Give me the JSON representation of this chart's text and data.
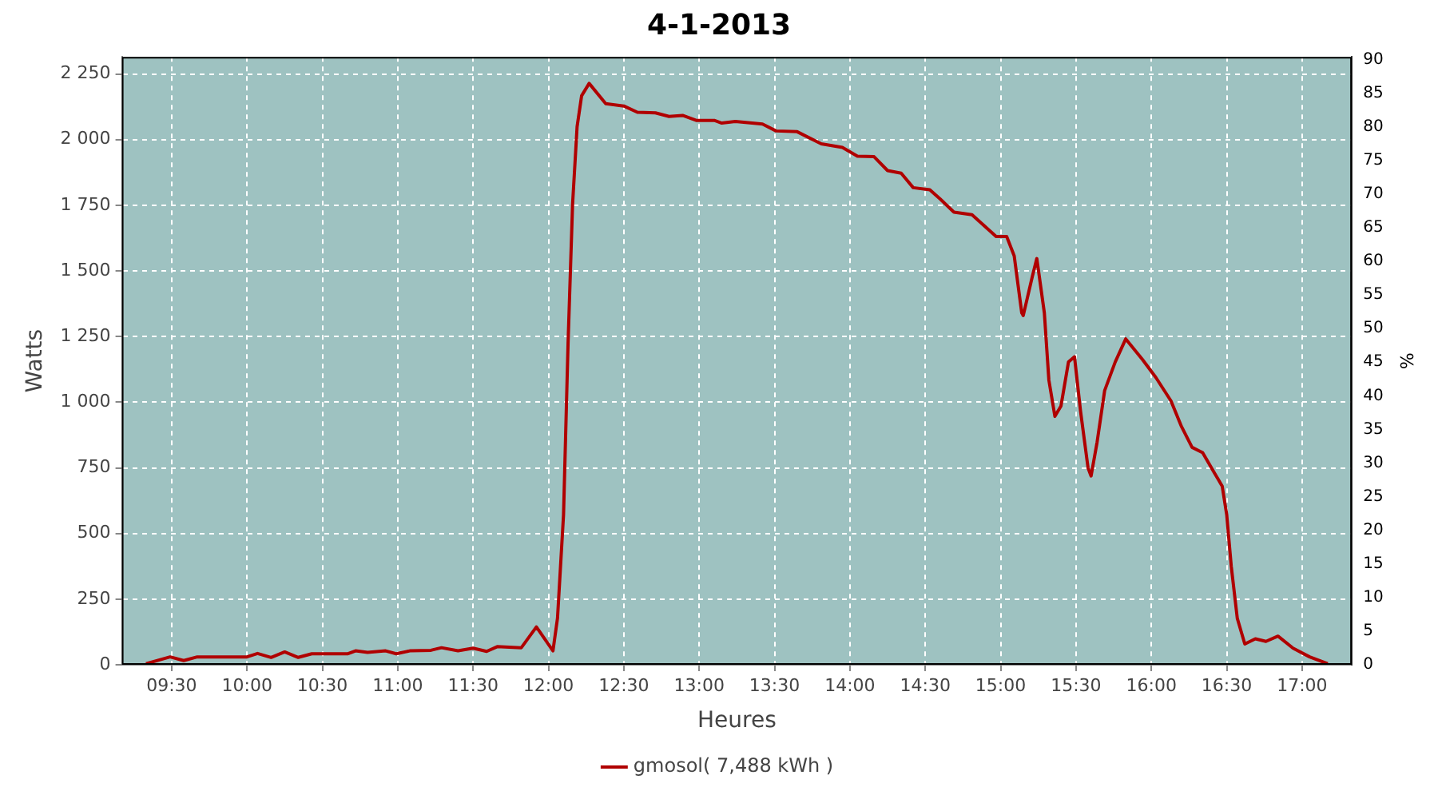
{
  "chart_data": {
    "type": "line",
    "title": "4-1-2013",
    "xlabel": "Heures",
    "ylabel": "Watts",
    "y2label": "%",
    "xlim": [
      9.17,
      17.33
    ],
    "xticks": [
      {
        "value": 9.5,
        "label": "09:30"
      },
      {
        "value": 10,
        "label": "10:00"
      },
      {
        "value": 10.5,
        "label": "10:30"
      },
      {
        "value": 11,
        "label": "11:00"
      },
      {
        "value": 11.5,
        "label": "11:30"
      },
      {
        "value": 12,
        "label": "12:00"
      },
      {
        "value": 12.5,
        "label": "12:30"
      },
      {
        "value": 13,
        "label": "13:00"
      },
      {
        "value": 13.5,
        "label": "13:30"
      },
      {
        "value": 14,
        "label": "14:00"
      },
      {
        "value": 14.5,
        "label": "14:30"
      },
      {
        "value": 15,
        "label": "15:00"
      },
      {
        "value": 15.5,
        "label": "15:30"
      },
      {
        "value": 16,
        "label": "16:00"
      },
      {
        "value": 16.5,
        "label": "16:30"
      },
      {
        "value": 17,
        "label": "17:00"
      }
    ],
    "ylim": [
      0,
      2315
    ],
    "yticks": [
      0,
      250,
      500,
      750,
      {
        "value": 1000,
        "label": "1 000"
      },
      {
        "value": 1250,
        "label": "1 250"
      },
      {
        "value": 1500,
        "label": "1 500"
      },
      {
        "value": 1750,
        "label": "1 750"
      },
      {
        "value": 2000,
        "label": "2 000"
      },
      {
        "value": 2250,
        "label": "2 250"
      }
    ],
    "y2lim": [
      0,
      90.4
    ],
    "y2ticks": [
      0,
      5,
      10,
      15,
      20,
      25,
      30,
      35,
      40,
      45,
      50,
      55,
      60,
      65,
      70,
      75,
      80,
      85,
      90
    ],
    "grid": true,
    "legend": "bottom",
    "marker": "none",
    "line_style": "solid",
    "series": [
      {
        "name": "gmosol( 7,488 kWh )",
        "color": "#b00000",
        "x": [
          9.33,
          9.49,
          9.58,
          9.67,
          10.0,
          10.07,
          10.16,
          10.25,
          10.34,
          10.43,
          10.67,
          10.72,
          10.8,
          10.92,
          10.99,
          11.08,
          11.22,
          11.29,
          11.4,
          11.5,
          11.59,
          11.66,
          11.82,
          11.92,
          12.03,
          12.06,
          12.1,
          12.13,
          12.16,
          12.19,
          12.22,
          12.27,
          12.38,
          12.5,
          12.59,
          12.71,
          12.8,
          12.89,
          12.98,
          13.1,
          13.15,
          13.24,
          13.42,
          13.51,
          13.65,
          13.81,
          13.95,
          14.05,
          14.16,
          14.25,
          14.34,
          14.42,
          14.53,
          14.6,
          14.69,
          14.81,
          14.97,
          15.04,
          15.09,
          15.14,
          15.15,
          15.21,
          15.24,
          15.29,
          15.32,
          15.36,
          15.4,
          15.45,
          15.49,
          15.53,
          15.58,
          15.6,
          15.64,
          15.69,
          15.76,
          15.83,
          15.94,
          16.03,
          16.13,
          16.2,
          16.27,
          16.34,
          16.41,
          16.47,
          16.5,
          16.53,
          16.57,
          16.62,
          16.69,
          16.76,
          16.84,
          16.94,
          17.05,
          17.17
        ],
        "values": [
          4,
          30,
          16,
          30,
          30,
          43,
          28,
          49,
          28,
          42,
          42,
          53,
          47,
          53,
          42,
          53,
          55,
          65,
          53,
          63,
          51,
          69,
          65,
          144,
          53,
          177,
          571,
          1222,
          1753,
          2049,
          2167,
          2214,
          2137,
          2128,
          2104,
          2102,
          2088,
          2092,
          2073,
          2073,
          2063,
          2069,
          2059,
          2033,
          2030,
          1984,
          1970,
          1937,
          1935,
          1882,
          1872,
          1817,
          1809,
          1773,
          1724,
          1714,
          1631,
          1631,
          1557,
          1340,
          1330,
          1478,
          1547,
          1340,
          1084,
          946,
          985,
          1153,
          1173,
          966,
          749,
          719,
          848,
          1044,
          1153,
          1241,
          1163,
          1094,
          1005,
          907,
          828,
          808,
          739,
          680,
          571,
          375,
          177,
          79,
          99,
          89,
          109,
          63,
          30,
          4
        ]
      }
    ]
  }
}
